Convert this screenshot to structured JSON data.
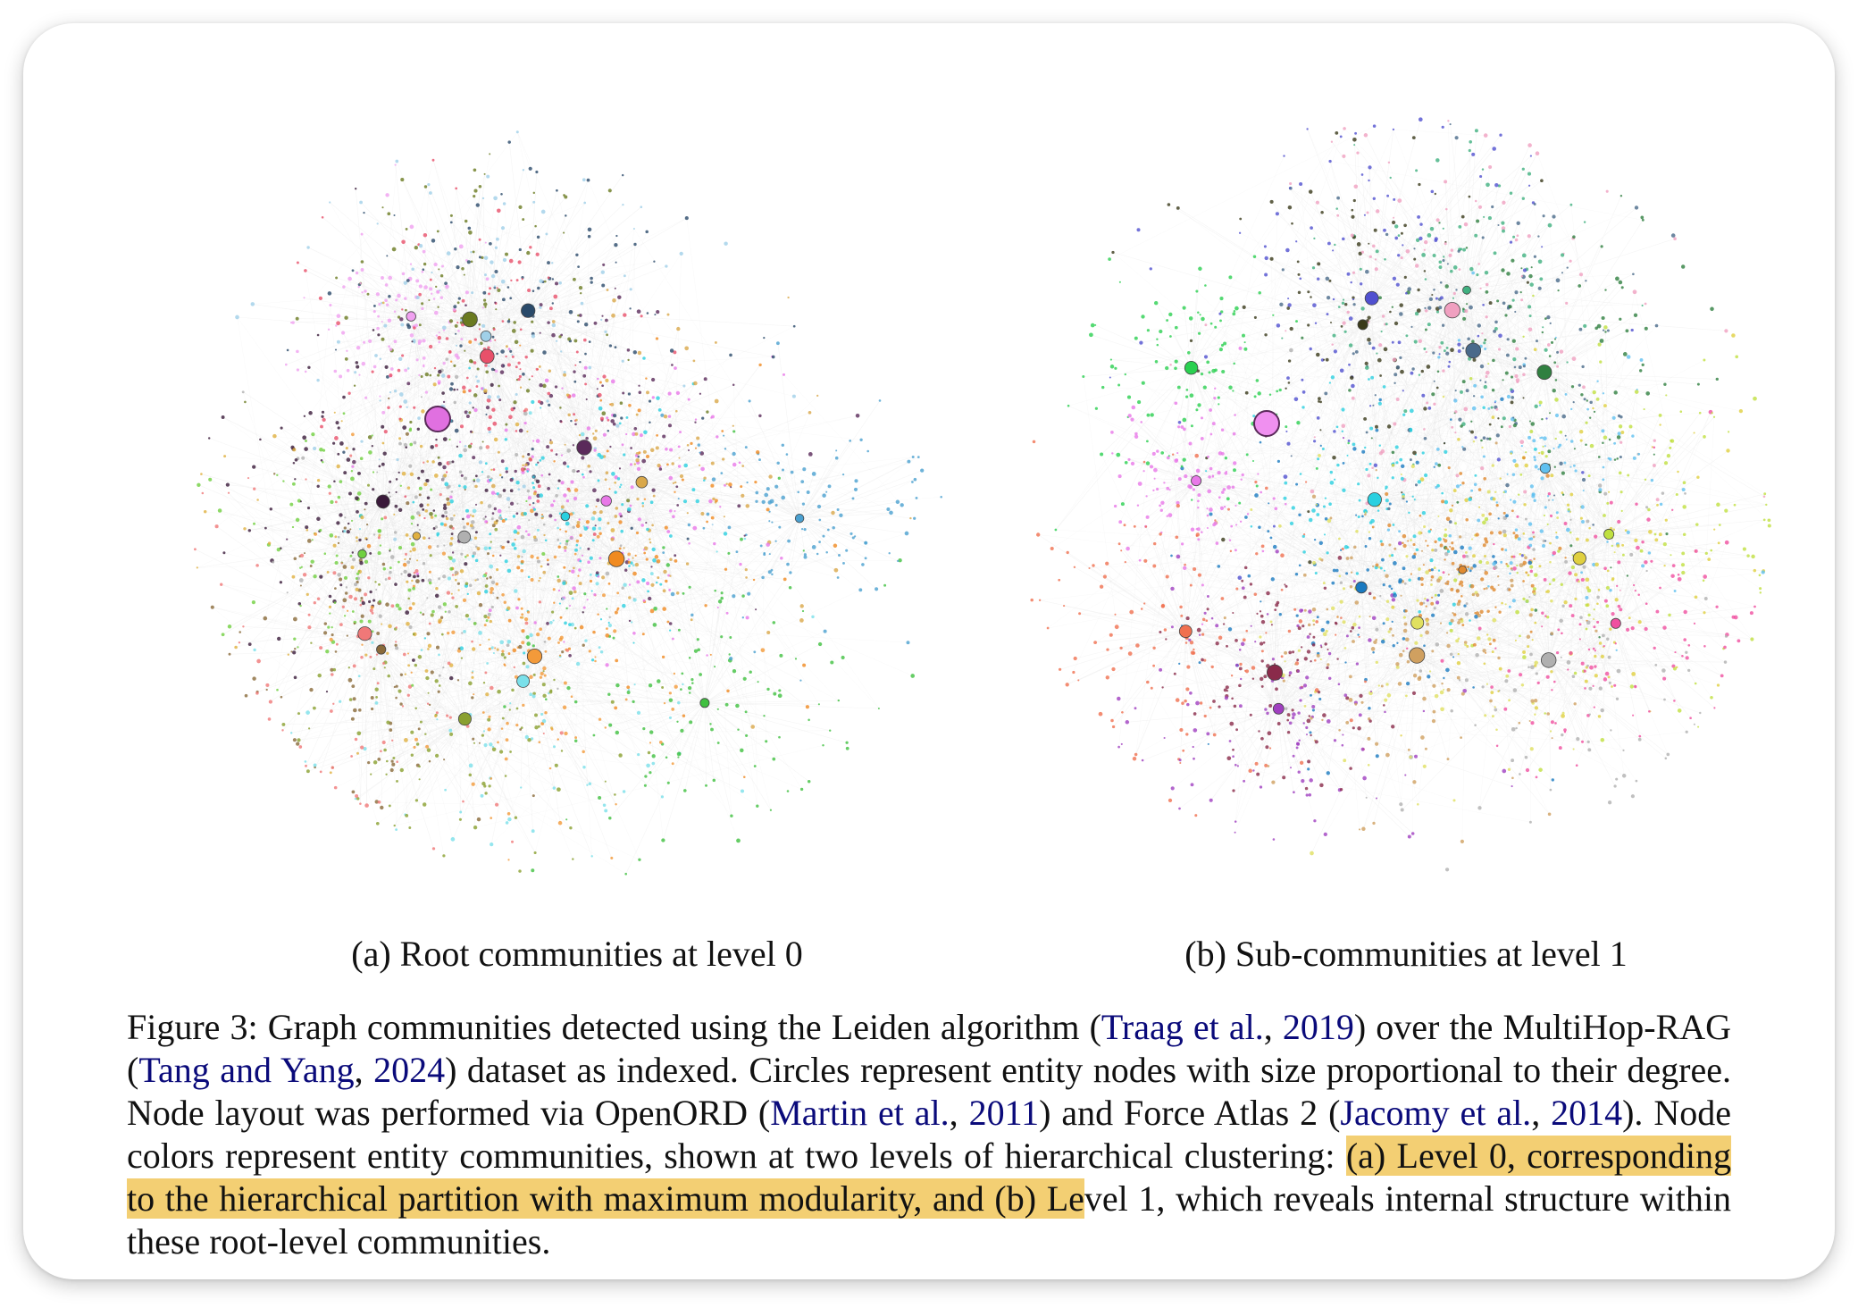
{
  "figure": {
    "panel_a": {
      "subcaption": "(a) Root communities at level 0",
      "palette": [
        "#e878e8",
        "#f0a0f0",
        "#3a1a3a",
        "#5a2a5a",
        "#d9a84a",
        "#e0b040",
        "#f07878",
        "#e8506a",
        "#f39a3a",
        "#f08a20",
        "#2ad0e0",
        "#7ae0ea",
        "#4aa0d0",
        "#8aa030",
        "#6a7a20",
        "#40c040",
        "#70d040",
        "#2a4a6a",
        "#b0b0b0",
        "#a0d0e8",
        "#8a6a3a"
      ],
      "hub_color": "#e070e0"
    },
    "panel_b": {
      "subcaption": "(b) Sub-communities at level 1",
      "palette": [
        "#e878e8",
        "#2ad050",
        "#3a3a1a",
        "#2ad0e0",
        "#1a7ac0",
        "#f07050",
        "#e0d040",
        "#a040c0",
        "#40b080",
        "#f0a0c0",
        "#c0e040",
        "#5050d0",
        "#e08a30",
        "#8a2a4a",
        "#60c0f0",
        "#b0b0b0",
        "#f050a0",
        "#308040",
        "#d0a060",
        "#4a6a8a",
        "#e0e060"
      ],
      "hub_color": "#f090f0"
    }
  },
  "caption": {
    "label": "Figure 3:",
    "t1": " Graph communities detected using the Leiden algorithm (",
    "c1a": "Traag et al.",
    "t2": ", ",
    "c1b": "2019",
    "t3": ") over the MultiHop-RAG (",
    "c2a": "Tang and Yang",
    "t4": ", ",
    "c2b": "2024",
    "t5": ") dataset as indexed. Circles represent entity nodes with size proportional to their degree. Node layout was performed via OpenORD (",
    "c3a": "Martin et al.",
    "t6": ", ",
    "c3b": "2011",
    "t7": ") and Force Atlas 2 (",
    "c4a": "Jacomy et al.",
    "t8": ", ",
    "c4b": "2014",
    "t9": "). Node colors represent entity communities, shown at two levels of hierarchical clustering: ",
    "highlight": "(a) Level 0, corresponding to the hierarchical partition with maximum modularity, and (b) Le",
    "t10": "vel 1, which reveals internal structure within these root-level communities."
  }
}
